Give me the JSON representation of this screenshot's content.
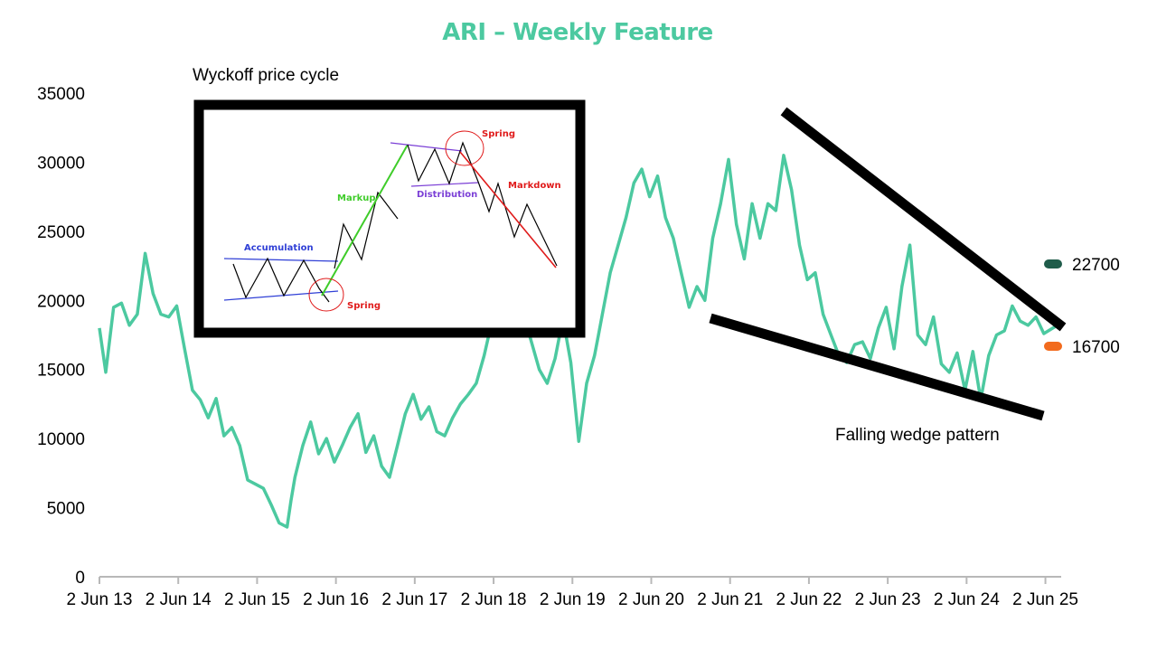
{
  "chart_data": {
    "type": "line",
    "title": "ARI – Weekly Feature",
    "xlabel": "",
    "ylabel": "",
    "ylim": [
      0,
      35000
    ],
    "yticks": [
      0,
      5000,
      10000,
      15000,
      20000,
      25000,
      30000,
      35000
    ],
    "xticks": [
      "2 Jun 13",
      "2 Jun 14",
      "2 Jun 15",
      "2 Jun 16",
      "2 Jun 17",
      "2 Jun 18",
      "2 Jun 19",
      "2 Jun 20",
      "2 Jun 21",
      "2 Jun 22",
      "2 Jun 23",
      "2 Jun 24",
      "2 Jun 25"
    ],
    "grid": false,
    "line_color": "#4cc9a0",
    "series": [
      {
        "x": [
          2013.42,
          2013.5,
          2013.6,
          2013.7,
          2013.8,
          2013.9,
          2014.0,
          2014.1,
          2014.2,
          2014.3,
          2014.4,
          2014.5,
          2014.6,
          2014.7,
          2014.8,
          2014.9,
          2015.0,
          2015.1,
          2015.2,
          2015.3,
          2015.4,
          2015.5,
          2015.6,
          2015.7,
          2015.8,
          2015.85,
          2015.9,
          2016.0,
          2016.1,
          2016.2,
          2016.3,
          2016.4,
          2016.5,
          2016.6,
          2016.7,
          2016.8,
          2016.9,
          2017.0,
          2017.1,
          2017.2,
          2017.3,
          2017.4,
          2017.5,
          2017.6,
          2017.7,
          2017.8,
          2017.9,
          2018.0,
          2018.1,
          2018.2,
          2018.3,
          2018.4,
          2018.5,
          2018.6,
          2018.7,
          2018.8,
          2018.9,
          2019.0,
          2019.1,
          2019.2,
          2019.3,
          2019.4,
          2019.5,
          2019.6,
          2019.7,
          2019.75,
          2019.8,
          2019.9,
          2020.0,
          2020.1,
          2020.2,
          2020.3,
          2020.4,
          2020.5,
          2020.6,
          2020.7,
          2020.8,
          2020.9,
          2021.0,
          2021.1,
          2021.2,
          2021.3,
          2021.4,
          2021.5,
          2021.6,
          2021.7,
          2021.8,
          2021.9,
          2022.0,
          2022.1,
          2022.2,
          2022.3,
          2022.4,
          2022.5,
          2022.6,
          2022.7,
          2022.8,
          2022.9,
          2023.0,
          2023.1,
          2023.2,
          2023.3,
          2023.4,
          2023.5,
          2023.6,
          2023.7,
          2023.8,
          2023.9,
          2024.0,
          2024.1,
          2024.2,
          2024.3,
          2024.4,
          2024.5,
          2024.6,
          2024.7,
          2024.8,
          2024.9,
          2025.0,
          2025.1,
          2025.2,
          2025.3,
          2025.4,
          2025.6
        ],
        "values": [
          18000,
          14800,
          19500,
          19800,
          18200,
          19000,
          23400,
          20500,
          19000,
          18800,
          19600,
          16500,
          13500,
          12800,
          11500,
          12900,
          10200,
          10800,
          9500,
          7000,
          6700,
          6400,
          5200,
          3900,
          3600,
          5500,
          7200,
          9500,
          11200,
          8900,
          10000,
          8300,
          9500,
          10800,
          11800,
          9000,
          10200,
          8000,
          7200,
          9500,
          11800,
          13200,
          11400,
          12300,
          10500,
          10200,
          11500,
          12500,
          13200,
          14000,
          16000,
          18500,
          20000,
          21000,
          17500,
          19000,
          17000,
          15000,
          14000,
          15800,
          18700,
          15500,
          9800,
          14000,
          16000,
          17500,
          19000,
          22000,
          24000,
          26000,
          28500,
          29500,
          27500,
          29000,
          26000,
          24500,
          22000,
          19500,
          21000,
          20000,
          24500,
          27000,
          30200,
          25500,
          23000,
          27000,
          24500,
          27000,
          26500,
          30500,
          28000,
          24000,
          21500,
          22000,
          19000,
          17500,
          16000,
          15500,
          16800,
          17000,
          15800,
          18000,
          19500,
          16500,
          21000,
          24000,
          17500,
          16800,
          18800,
          15400,
          14800,
          16200,
          13500,
          16300,
          12800,
          16000,
          17500,
          17800,
          19600,
          18500,
          18200,
          18800,
          17600,
          18300
        ]
      }
    ],
    "legend": [
      {
        "value": "22700",
        "color": "#1f5c4a"
      },
      {
        "value": "16700",
        "color": "#f26b1d"
      }
    ],
    "annotations": {
      "inset_title": "Wyckoff price cycle",
      "wedge_label": "Falling wedge pattern",
      "inset_labels": {
        "accumulation": "Accumulation",
        "spring1": "Spring",
        "markup": "Markup",
        "distribution": "Distribution",
        "spring2": "Spring",
        "markdown": "Markdown"
      }
    }
  }
}
